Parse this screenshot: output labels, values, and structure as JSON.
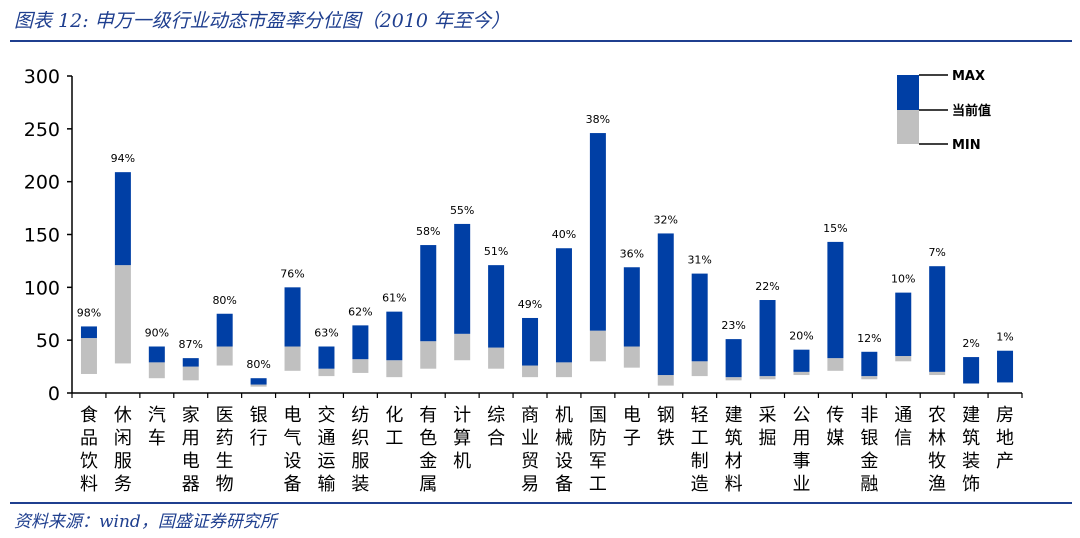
{
  "figure": {
    "title": "图表 12:  申万一级行业动态市盈率分位图（2010 年至今）",
    "source": "资料来源：wind，国盛证券研究所"
  },
  "colors": {
    "upper": "#003fa5",
    "lower": "#c0c0c0",
    "frame": "#1f3f8f"
  },
  "chart_data": {
    "type": "bar",
    "stacked_range": true,
    "title": "",
    "xlabel": "",
    "ylabel": "",
    "ylim": [
      0,
      300
    ],
    "yticks": [
      0,
      50,
      100,
      150,
      200,
      250,
      300
    ],
    "legend": {
      "position": "top-right",
      "entries": [
        "MAX",
        "当前值",
        "MIN"
      ]
    },
    "categories": [
      "食品饮料",
      "休闲服务",
      "汽车",
      "家用电器",
      "医药生物",
      "银行",
      "电气设备",
      "交通运输",
      "纺织服装",
      "化工",
      "有色金属",
      "计算机",
      "综合",
      "商业贸易",
      "机械设备",
      "国防军工",
      "电子",
      "钢铁",
      "轻工制造",
      "建筑材料",
      "采掘",
      "公用事业",
      "传媒",
      "非银金融",
      "通信",
      "农林牧渔",
      "建筑装饰",
      "房地产"
    ],
    "max": [
      63,
      209,
      44,
      33,
      75,
      14,
      100,
      44,
      64,
      77,
      140,
      160,
      121,
      71,
      137,
      246,
      119,
      151,
      113,
      51,
      88,
      41,
      143,
      39,
      95,
      120,
      34,
      40
    ],
    "current": [
      52,
      121,
      29,
      25,
      44,
      8,
      44,
      23,
      32,
      31,
      49,
      56,
      43,
      26,
      29,
      59,
      44,
      17,
      30,
      15,
      16,
      20,
      33,
      16,
      35,
      20,
      9,
      10
    ],
    "min": [
      18,
      28,
      14,
      12,
      26,
      6,
      21,
      16,
      19,
      15,
      23,
      31,
      23,
      15,
      15,
      30,
      24,
      7,
      16,
      12,
      13,
      17,
      21,
      13,
      30,
      17,
      9,
      10
    ],
    "percentile_labels": [
      "98%",
      "94%",
      "90%",
      "87%",
      "80%",
      "80%",
      "76%",
      "63%",
      "62%",
      "61%",
      "58%",
      "55%",
      "51%",
      "49%",
      "40%",
      "38%",
      "36%",
      "32%",
      "31%",
      "23%",
      "22%",
      "20%",
      "15%",
      "12%",
      "10%",
      "7%",
      "2%",
      "1%"
    ]
  }
}
